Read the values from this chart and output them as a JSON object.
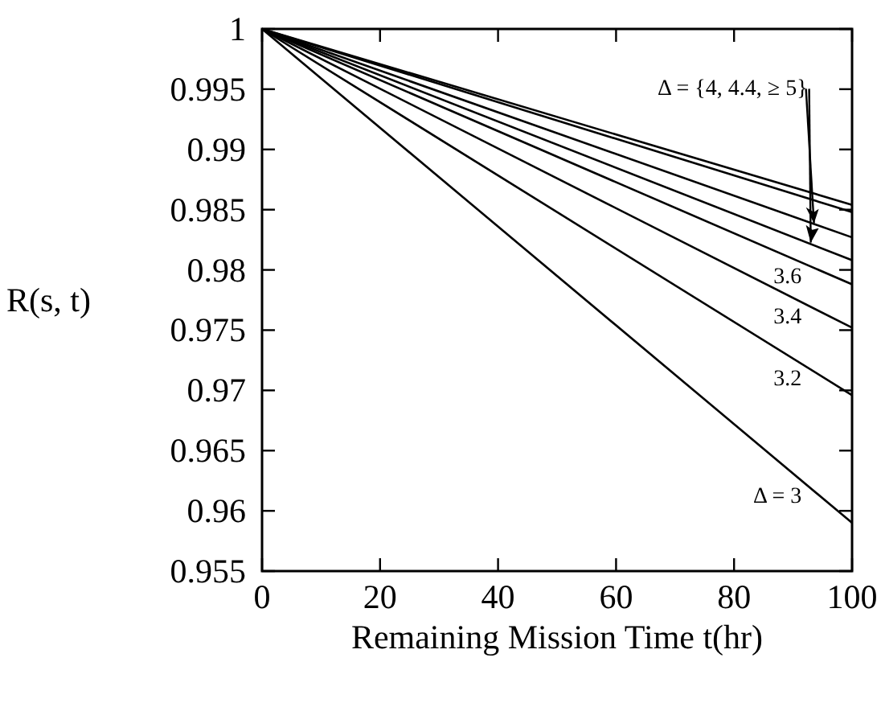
{
  "chart_data": {
    "type": "line",
    "xlabel": "Remaining Mission Time t(hr)",
    "ylabel": "R(s, t)",
    "xlim": [
      0,
      100
    ],
    "ylim": [
      0.955,
      1
    ],
    "xticks": [
      0,
      20,
      40,
      60,
      80,
      100
    ],
    "yticks": [
      0.955,
      0.96,
      0.965,
      0.97,
      0.975,
      0.98,
      0.985,
      0.99,
      0.995,
      1
    ],
    "x": [
      0,
      100
    ],
    "grid": false,
    "legend": "right",
    "marker": "none",
    "line_style": "solid",
    "series": [
      {
        "color": "#000000",
        "values": [
          1,
          0.9854
        ]
      },
      {
        "color": "#000000",
        "values": [
          1,
          0.9848
        ]
      },
      {
        "color": "#000000",
        "values": [
          1,
          0.9827
        ]
      },
      {
        "color": "#000000",
        "values": [
          1,
          0.9808
        ]
      },
      {
        "name": "3.6",
        "color": "#000000",
        "values": [
          1,
          0.9788
        ]
      },
      {
        "name": "3.4",
        "color": "#000000",
        "values": [
          1,
          0.9752
        ]
      },
      {
        "name": "3.2",
        "color": "#000000",
        "values": [
          1,
          0.9696
        ]
      },
      {
        "name": "Δ = 3",
        "color": "#000000",
        "values": [
          1,
          0.959
        ]
      }
    ],
    "annotations": [
      {
        "text": "Δ = {4, 4.4, ≥ 5}",
        "x": 93,
        "y": 0.9836
      }
    ]
  }
}
